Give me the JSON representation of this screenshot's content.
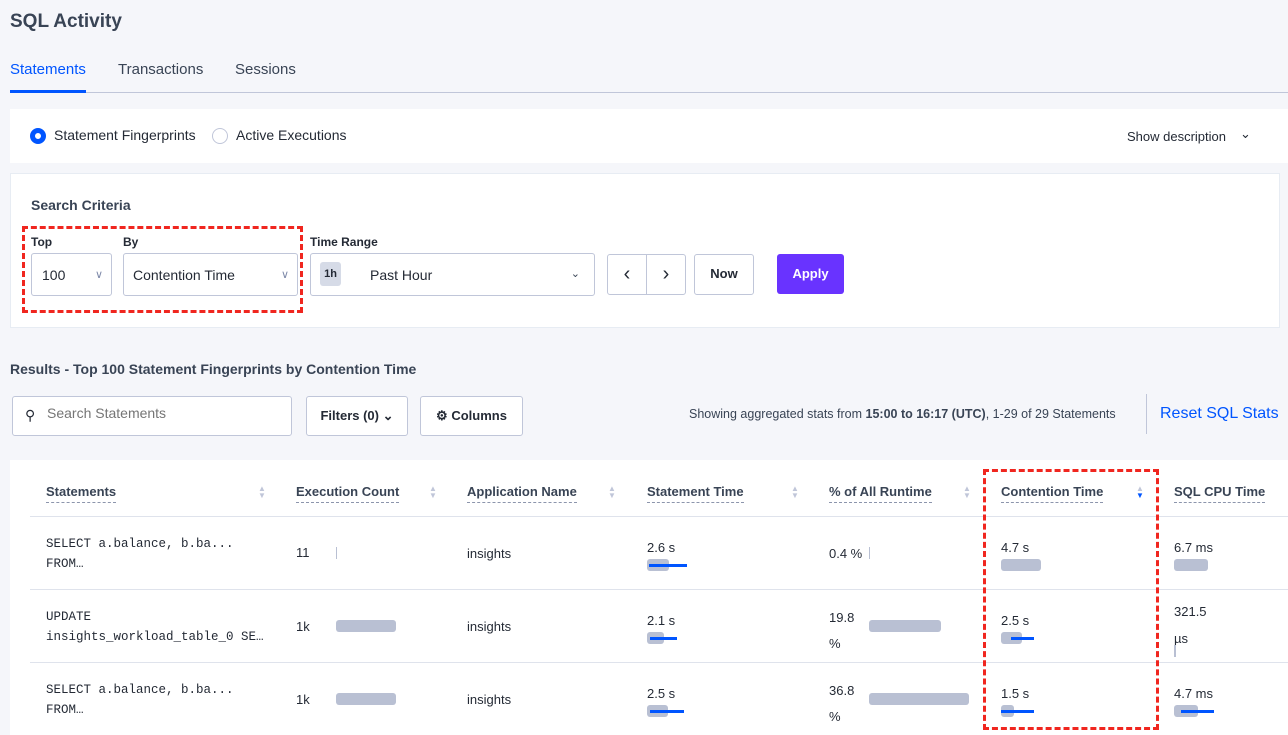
{
  "page_title": "SQL Activity",
  "tabs": [
    "Statements",
    "Transactions",
    "Sessions"
  ],
  "radio": {
    "options": [
      "Statement Fingerprints",
      "Active Executions"
    ],
    "selected": "Statement Fingerprints"
  },
  "show_description": "Show description",
  "search_criteria": {
    "title": "Search Criteria",
    "top_label": "Top",
    "top_value": "100",
    "by_label": "By",
    "by_value": "Contention Time",
    "time_range_label": "Time Range",
    "time_badge": "1h",
    "time_value": "Past Hour",
    "now": "Now",
    "apply": "Apply"
  },
  "results_title": "Results - Top 100 Statement Fingerprints by Contention Time",
  "toolbar": {
    "search_placeholder": "Search Statements",
    "filters": "Filters (0)",
    "columns": "Columns",
    "showing_prefix": "Showing aggregated stats from ",
    "showing_bold": "15:00 to 16:17 (UTC)",
    "showing_suffix": ", 1-29 of 29 Statements",
    "reset": "Reset SQL Stats"
  },
  "colors": {
    "accent": "#0055ff",
    "apply": "#6933ff",
    "annotation": "#f0261f"
  },
  "table": {
    "columns": [
      "Statements",
      "Execution Count",
      "Application Name",
      "Statement Time",
      "% of All Runtime",
      "Contention Time",
      "SQL CPU Time"
    ],
    "sorted_by": "Contention Time",
    "sort_direction": "descending",
    "rows": [
      {
        "statement": [
          "SELECT a.balance, b.ba...",
          "FROM…"
        ],
        "exec": "11",
        "app": "insights",
        "stmt_time": "2.6 s",
        "runtime": "0.4 %",
        "contention": "4.7 s",
        "cpu": "6.7 ms"
      },
      {
        "statement": [
          "UPDATE",
          "insights_workload_table_0 SE…"
        ],
        "exec": "1k",
        "app": "insights",
        "stmt_time": "2.1 s",
        "runtime": "19.8 %",
        "contention": "2.5 s",
        "cpu": "321.5 µs"
      },
      {
        "statement": [
          "SELECT a.balance, b.ba...",
          "FROM…"
        ],
        "exec": "1k",
        "app": "insights",
        "stmt_time": "2.5 s",
        "runtime": "36.8 %",
        "contention": "1.5 s",
        "cpu": "4.7 ms"
      }
    ]
  }
}
